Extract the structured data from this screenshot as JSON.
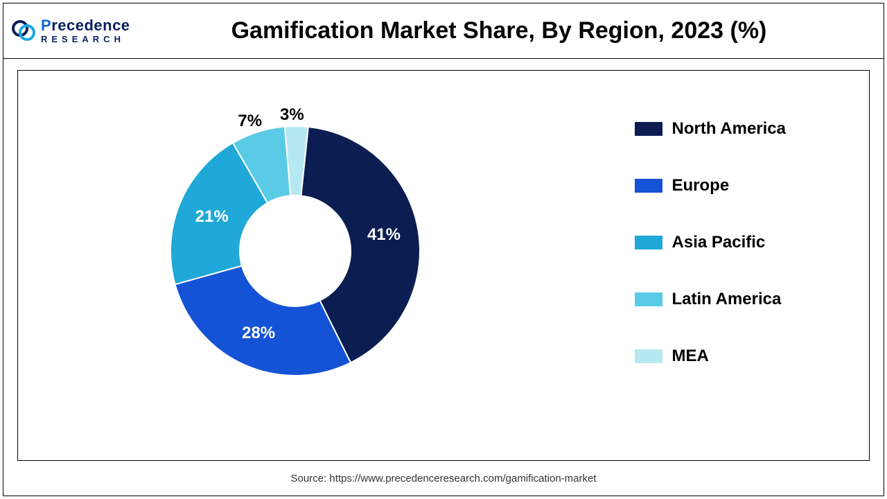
{
  "logo": {
    "line1_prefix": "P",
    "line1_rest": "recedence",
    "line2": "RESEARCH",
    "mark_colors": {
      "dark": "#0a1f5c",
      "light": "#1ea7e0"
    }
  },
  "chart": {
    "type": "donut",
    "title": "Gamification Market Share, By Region, 2023 (%)",
    "background_color": "#ffffff",
    "border_color": "#000000",
    "inner_radius_pct": 40,
    "outer_radius_pct": 90,
    "start_angle_deg": 6,
    "label_fontsize": 24,
    "label_fontweight": 700,
    "slices": [
      {
        "name": "North America",
        "value": 41,
        "color": "#0b1d51",
        "label": "41%",
        "label_color": "#ffffff"
      },
      {
        "name": "Europe",
        "value": 28,
        "color": "#1452d6",
        "label": "28%",
        "label_color": "#ffffff"
      },
      {
        "name": "Asia Pacific",
        "value": 21,
        "color": "#1fa8d8",
        "label": "21%",
        "label_color": "#ffffff"
      },
      {
        "name": "Latin America",
        "value": 7,
        "color": "#5acbe6",
        "label": "7%",
        "label_color": "#000000"
      },
      {
        "name": "MEA",
        "value": 3,
        "color": "#b6e8f2",
        "label": "3%",
        "label_color": "#000000"
      }
    ],
    "legend": {
      "position": "right",
      "fontsize": 24,
      "fontweight": 700,
      "swatch_w": 40,
      "swatch_h": 20
    },
    "source_text": "Source: https://www.precedenceresearch.com/gamification-market",
    "source_fontsize": 15,
    "source_color": "#333333"
  }
}
